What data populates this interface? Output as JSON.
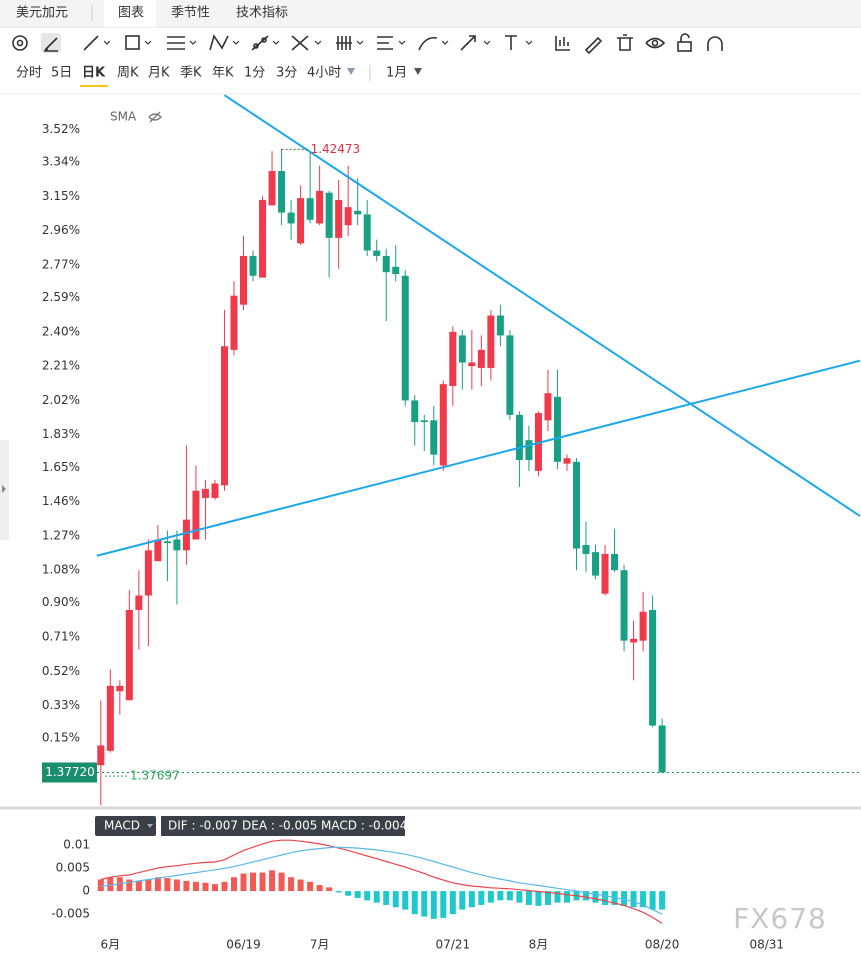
{
  "toolbar": {
    "symbol": "美元加元",
    "tabs": [
      "图表",
      "季节性",
      "技术指标"
    ],
    "periods": [
      "分时",
      "5日",
      "日K",
      "周K",
      "月K",
      "季K",
      "年K",
      "1分",
      "3分",
      "4小时"
    ],
    "range": "1月"
  },
  "chart_data": {
    "type": "candlestick",
    "overlay": "SMA",
    "watermark": "FX678",
    "up_color": "#f0394a",
    "down_color": "#18a085",
    "xlim": [
      -0.4,
      79.8
    ],
    "xticks": [
      {
        "value": 1,
        "label": "6月"
      },
      {
        "value": 15,
        "label": "06/19"
      },
      {
        "value": 23,
        "label": "7月"
      },
      {
        "value": 37,
        "label": "07/21"
      },
      {
        "value": 46,
        "label": "8月"
      },
      {
        "value": 59,
        "label": "08/20"
      },
      {
        "value": 70,
        "label": "08/31"
      }
    ],
    "ylim": [
      -0.22,
      3.7
    ],
    "yticks": [
      {
        "value": 3.52,
        "label": "3.52%"
      },
      {
        "value": 3.34,
        "label": "3.34%"
      },
      {
        "value": 3.15,
        "label": "3.15%"
      },
      {
        "value": 2.96,
        "label": "2.96%"
      },
      {
        "value": 2.77,
        "label": "2.77%"
      },
      {
        "value": 2.59,
        "label": "2.59%"
      },
      {
        "value": 2.4,
        "label": "2.40%"
      },
      {
        "value": 2.21,
        "label": "2.21%"
      },
      {
        "value": 2.02,
        "label": "2.02%"
      },
      {
        "value": 1.83,
        "label": "1.83%"
      },
      {
        "value": 1.65,
        "label": "1.65%"
      },
      {
        "value": 1.46,
        "label": "1.46%"
      },
      {
        "value": 1.27,
        "label": "1.27%"
      },
      {
        "value": 1.08,
        "label": "1.08%"
      },
      {
        "value": 0.9,
        "label": "0.90%"
      },
      {
        "value": 0.71,
        "label": "0.71%"
      },
      {
        "value": 0.52,
        "label": "0.52%"
      },
      {
        "value": 0.33,
        "label": "0.33%"
      },
      {
        "value": 0.15,
        "label": "0.15%"
      }
    ],
    "open": [
      0,
      0.08,
      0.41,
      0.36,
      0.86,
      0.94,
      1.13,
      1.24,
      1.25,
      1.19,
      1.25,
      1.48,
      1.48,
      1.55,
      2.3,
      2.55,
      2.82,
      2.7,
      3.1,
      3.29,
      3.06,
      2.89,
      3.14,
      3.0,
      3.17,
      2.92,
      2.99,
      3.07,
      3.05,
      2.85,
      2.82,
      2.76,
      2.71,
      2.02,
      1.91,
      1.91,
      1.66,
      2.1,
      2.38,
      2.21,
      2.2,
      2.2,
      2.49,
      2.38,
      1.94,
      1.8,
      1.63,
      1.91,
      2.04,
      1.67,
      1.68,
      1.22,
      1.18,
      0.95,
      1.17,
      1.08,
      0.68,
      0.69,
      0.86,
      0.22
    ],
    "high": [
      0.36,
      0.53,
      0.47,
      0.97,
      1.08,
      1.25,
      1.33,
      1.3,
      1.3,
      1.77,
      1.66,
      1.58,
      1.58,
      2.52,
      2.68,
      2.93,
      2.85,
      3.15,
      3.4,
      3.41,
      3.13,
      3.21,
      3.4,
      3.32,
      3.18,
      3.24,
      3.32,
      3.25,
      3.13,
      2.91,
      2.86,
      2.88,
      2.74,
      2.05,
      1.94,
      1.99,
      2.13,
      2.43,
      2.41,
      2.41,
      2.38,
      2.52,
      2.55,
      2.41,
      1.96,
      1.88,
      1.96,
      2.19,
      2.19,
      1.72,
      1.7,
      1.35,
      1.22,
      1.22,
      1.31,
      1.11,
      0.8,
      0.96,
      0.94,
      0.26
    ],
    "low": [
      -0.22,
      0.07,
      0.28,
      0.36,
      0.64,
      0.66,
      1.13,
      1.02,
      0.89,
      1.11,
      1.25,
      1.25,
      1.47,
      1.52,
      2.27,
      2.52,
      2.68,
      2.7,
      3.1,
      2.99,
      2.91,
      2.88,
      3.0,
      2.99,
      2.7,
      2.75,
      2.93,
      2.99,
      2.82,
      2.79,
      2.46,
      2.68,
      1.99,
      1.77,
      1.74,
      1.66,
      1.63,
      1.99,
      2.08,
      2.08,
      2.1,
      2.13,
      2.32,
      1.91,
      1.54,
      1.63,
      1.6,
      1.85,
      1.64,
      1.63,
      1.08,
      1.07,
      1.03,
      0.94,
      1.07,
      0.63,
      0.47,
      0.63,
      0.21,
      -0.04
    ],
    "close": [
      0.11,
      0.44,
      0.44,
      0.86,
      0.94,
      1.19,
      1.25,
      1.23,
      1.19,
      1.36,
      1.52,
      1.53,
      1.56,
      2.32,
      2.6,
      2.82,
      2.71,
      3.13,
      3.29,
      3.06,
      3.0,
      3.14,
      3.02,
      3.18,
      2.92,
      3.13,
      3.09,
      3.05,
      2.85,
      2.82,
      2.73,
      2.72,
      2.02,
      1.9,
      1.9,
      1.72,
      2.11,
      2.4,
      2.23,
      2.23,
      2.3,
      2.49,
      2.38,
      1.94,
      1.69,
      1.69,
      1.95,
      2.06,
      1.68,
      1.7,
      1.2,
      1.17,
      1.05,
      1.17,
      1.08,
      0.69,
      0.7,
      0.85,
      0.22,
      -0.04
    ],
    "high_marker": {
      "label": "1.42473",
      "color": "#e0303f"
    },
    "last_price": {
      "label": "1.37720",
      "level": -0.04,
      "color": "#1a8f6e"
    },
    "low_marker": {
      "label": "1.37697",
      "level": -0.06,
      "color": "#2aa855"
    },
    "trendlines": {
      "color": "#1ea8ec",
      "lines": [
        {
          "x": [
            13.0,
            79.8
          ],
          "y": [
            3.71,
            1.38
          ]
        },
        {
          "x": [
            -0.42,
            79.8
          ],
          "y": [
            1.16,
            2.24
          ]
        }
      ]
    },
    "macd": {
      "name": "MACD",
      "legend": [
        "DIF : -0.007",
        "DEA : -0.005",
        "MACD : -0.004"
      ],
      "ylim": [
        -0.0095,
        0.0117
      ],
      "yticks": [
        0.01,
        0.005,
        0,
        -0.005
      ],
      "pos_color": "#f25a55",
      "neg_color": "#1ec8cc",
      "hist": [
        0.0025,
        0.003,
        0.003,
        0.0025,
        0.0022,
        0.0025,
        0.003,
        0.0028,
        0.0025,
        0.0022,
        0.002,
        0.0018,
        0.0015,
        0.002,
        0.003,
        0.0038,
        0.004,
        0.004,
        0.0045,
        0.004,
        0.003,
        0.0025,
        0.002,
        0.0013,
        0.0008,
        -0.0003,
        -0.001,
        -0.0015,
        -0.002,
        -0.0025,
        -0.003,
        -0.0035,
        -0.004,
        -0.005,
        -0.0055,
        -0.006,
        -0.0058,
        -0.005,
        -0.004,
        -0.0035,
        -0.003,
        -0.0025,
        -0.002,
        -0.002,
        -0.0025,
        -0.003,
        -0.0032,
        -0.003,
        -0.0025,
        -0.0025,
        -0.002,
        -0.002,
        -0.0025,
        -0.003,
        -0.003,
        -0.0032,
        -0.0035,
        -0.0035,
        -0.004,
        -0.004
      ],
      "series": [
        {
          "name": "DIF",
          "color": "#e8474b",
          "values": [
            0.0025,
            0.003,
            0.0033,
            0.0035,
            0.004,
            0.0045,
            0.005,
            0.0053,
            0.0055,
            0.0058,
            0.006,
            0.0062,
            0.0063,
            0.0068,
            0.0078,
            0.0088,
            0.0095,
            0.0102,
            0.0108,
            0.011,
            0.011,
            0.0108,
            0.0105,
            0.0102,
            0.0098,
            0.0093,
            0.0088,
            0.0082,
            0.0076,
            0.007,
            0.0064,
            0.0058,
            0.0052,
            0.0045,
            0.0038,
            0.003,
            0.0024,
            0.0018,
            0.0014,
            0.0011,
            0.0009,
            0.0007,
            0.0006,
            0.0005,
            0.0003,
            0.0001,
            -0.0001,
            -0.0003,
            -0.0005,
            -0.0008,
            -0.001,
            -0.0013,
            -0.0017,
            -0.0021,
            -0.0026,
            -0.0031,
            -0.0038,
            -0.0046,
            -0.0057,
            -0.007
          ]
        },
        {
          "name": "DEA",
          "color": "#5ab9e6",
          "values": [
            0.001,
            0.0013,
            0.0016,
            0.0019,
            0.0022,
            0.0025,
            0.0028,
            0.0031,
            0.0034,
            0.0037,
            0.004,
            0.0043,
            0.0046,
            0.0049,
            0.0053,
            0.0058,
            0.0063,
            0.0068,
            0.0073,
            0.0078,
            0.0083,
            0.0087,
            0.009,
            0.0092,
            0.0094,
            0.0095,
            0.0094,
            0.0093,
            0.0091,
            0.0089,
            0.0086,
            0.0083,
            0.008,
            0.0075,
            0.007,
            0.0064,
            0.0058,
            0.0052,
            0.0046,
            0.004,
            0.0035,
            0.003,
            0.0026,
            0.0022,
            0.0018,
            0.0015,
            0.0012,
            0.0009,
            0.0006,
            0.0003,
            0,
            -0.0003,
            -0.0007,
            -0.001,
            -0.0014,
            -0.0018,
            -0.0023,
            -0.003,
            -0.004,
            -0.005
          ]
        }
      ]
    }
  }
}
